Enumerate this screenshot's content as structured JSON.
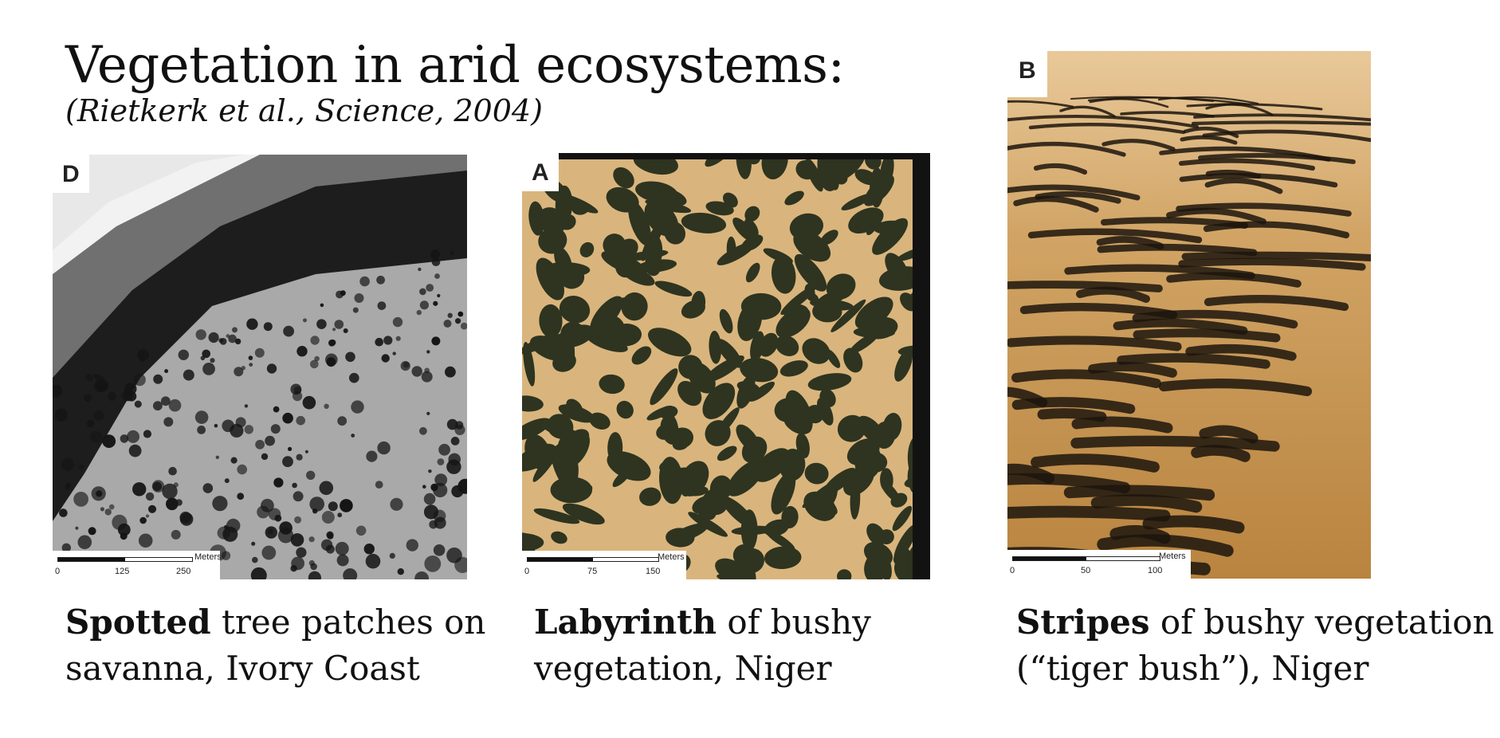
{
  "slide": {
    "title": "Vegetation in arid ecosystems:",
    "subtitle": "(Rietkerk et al., Science, 2004)"
  },
  "panels": [
    {
      "label": "D",
      "scale_unit": "Meters",
      "scale_ticks": [
        "0",
        "125",
        "250"
      ],
      "caption_bold": "Spotted",
      "caption_rest_1": " tree patches on",
      "caption_line_2": "savanna, Ivory Coast"
    },
    {
      "label": "A",
      "scale_unit": "Meters",
      "scale_ticks": [
        "0",
        "75",
        "150"
      ],
      "caption_bold": "Labyrinth",
      "caption_rest_1": " of bushy",
      "caption_line_2": "vegetation, Niger"
    },
    {
      "label": "B",
      "scale_unit": "Meters",
      "scale_ticks": [
        "0",
        "50",
        "100"
      ],
      "caption_bold": "Stripes",
      "caption_rest_1": " of bushy vegetation",
      "caption_line_2": "(“tiger bush”), Niger"
    }
  ],
  "colors": {
    "sand": "#d9b57d",
    "bush": "#2b2d1c",
    "savanna_gray": "#a8a8a8",
    "river": "#6e6e6e"
  }
}
